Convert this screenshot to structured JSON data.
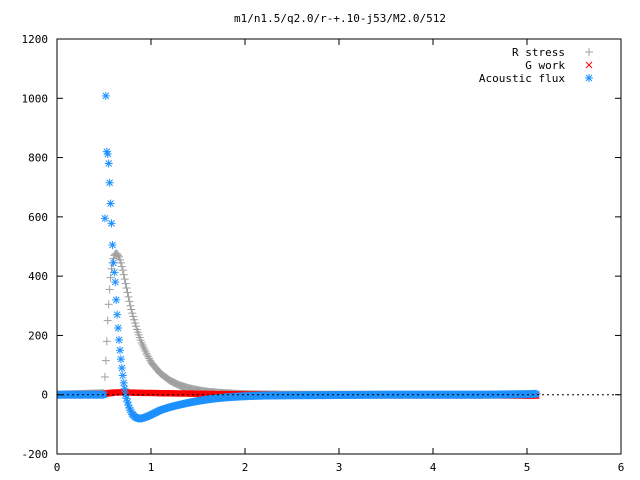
{
  "chart_data": {
    "type": "scatter",
    "title": "m1/n1.5/q2.0/r-+.10-j53/M2.0/512",
    "xlabel": "",
    "ylabel": "",
    "xlim": [
      0,
      6
    ],
    "ylim": [
      -200,
      1200
    ],
    "xticks": [
      "0",
      "1",
      "2",
      "3",
      "4",
      "5",
      "6"
    ],
    "yticks": [
      "-200",
      "0",
      "200",
      "400",
      "600",
      "800",
      "1000",
      "1200"
    ],
    "grid": false,
    "legend_position": "top-right",
    "series": [
      {
        "name": "R stress",
        "marker": "plus",
        "color": "#a0a0a0",
        "x": [
          0.0,
          0.5,
          0.52,
          0.53,
          0.54,
          0.55,
          0.56,
          0.57,
          0.58,
          0.59,
          0.6,
          0.61,
          0.62,
          0.63,
          0.64,
          0.66,
          0.68,
          0.7,
          0.72,
          0.75,
          0.78,
          0.8,
          0.85,
          0.9,
          0.95,
          1.0,
          1.05,
          1.1,
          1.2,
          1.3,
          1.4,
          1.5,
          1.6,
          1.7,
          1.8,
          1.9,
          2.0,
          2.2,
          2.5,
          3.0,
          4.0,
          5.1
        ],
        "y": [
          0,
          5,
          115,
          180,
          250,
          305,
          355,
          395,
          425,
          445,
          460,
          470,
          475,
          476,
          475,
          465,
          445,
          420,
          390,
          345,
          300,
          275,
          220,
          175,
          140,
          110,
          90,
          72,
          48,
          32,
          22,
          15,
          10,
          7,
          5,
          3,
          2,
          1,
          0,
          0,
          0,
          0
        ]
      },
      {
        "name": "G work",
        "marker": "cross",
        "color": "#ff0000",
        "x": [
          0.0,
          0.5,
          0.55,
          0.6,
          0.65,
          0.7,
          0.8,
          0.9,
          1.0,
          1.1,
          1.2,
          1.3,
          1.4,
          1.5,
          1.6,
          1.7,
          1.8,
          1.9,
          2.0,
          2.1,
          2.2,
          2.4,
          2.6,
          3.0,
          3.5,
          4.0,
          4.5,
          5.0,
          5.1
        ],
        "y": [
          0,
          3,
          5,
          7,
          8,
          8,
          7,
          6,
          6,
          5,
          5,
          4,
          4,
          3,
          3,
          2,
          2,
          2,
          1,
          1,
          1,
          0,
          0,
          0,
          0,
          0,
          -1,
          -3,
          -3
        ]
      },
      {
        "name": "Acoustic flux",
        "marker": "star",
        "color": "#1e90ff",
        "x": [
          0.0,
          0.3,
          0.45,
          0.5,
          0.51,
          0.52,
          0.53,
          0.54,
          0.55,
          0.56,
          0.57,
          0.58,
          0.59,
          0.6,
          0.62,
          0.63,
          0.64,
          0.65,
          0.66,
          0.67,
          0.68,
          0.69,
          0.7,
          0.71,
          0.72,
          0.73,
          0.75,
          0.77,
          0.8,
          0.83,
          0.86,
          0.9,
          0.95,
          1.0,
          1.05,
          1.1,
          1.2,
          1.3,
          1.4,
          1.5,
          1.6,
          1.7,
          1.8,
          1.9,
          2.0,
          2.2,
          2.5,
          3.0,
          3.5,
          4.0,
          4.5,
          5.0,
          5.1
        ],
        "y": [
          0,
          0,
          0,
          0,
          595,
          1008,
          820,
          812,
          780,
          715,
          645,
          578,
          505,
          445,
          380,
          320,
          270,
          225,
          185,
          150,
          120,
          90,
          65,
          40,
          20,
          0,
          -25,
          -45,
          -65,
          -75,
          -80,
          -80,
          -75,
          -68,
          -60,
          -52,
          -42,
          -34,
          -27,
          -21,
          -16,
          -12,
          -9,
          -7,
          -5,
          -3,
          -2,
          -1,
          0,
          0,
          0,
          2,
          3
        ]
      }
    ]
  }
}
